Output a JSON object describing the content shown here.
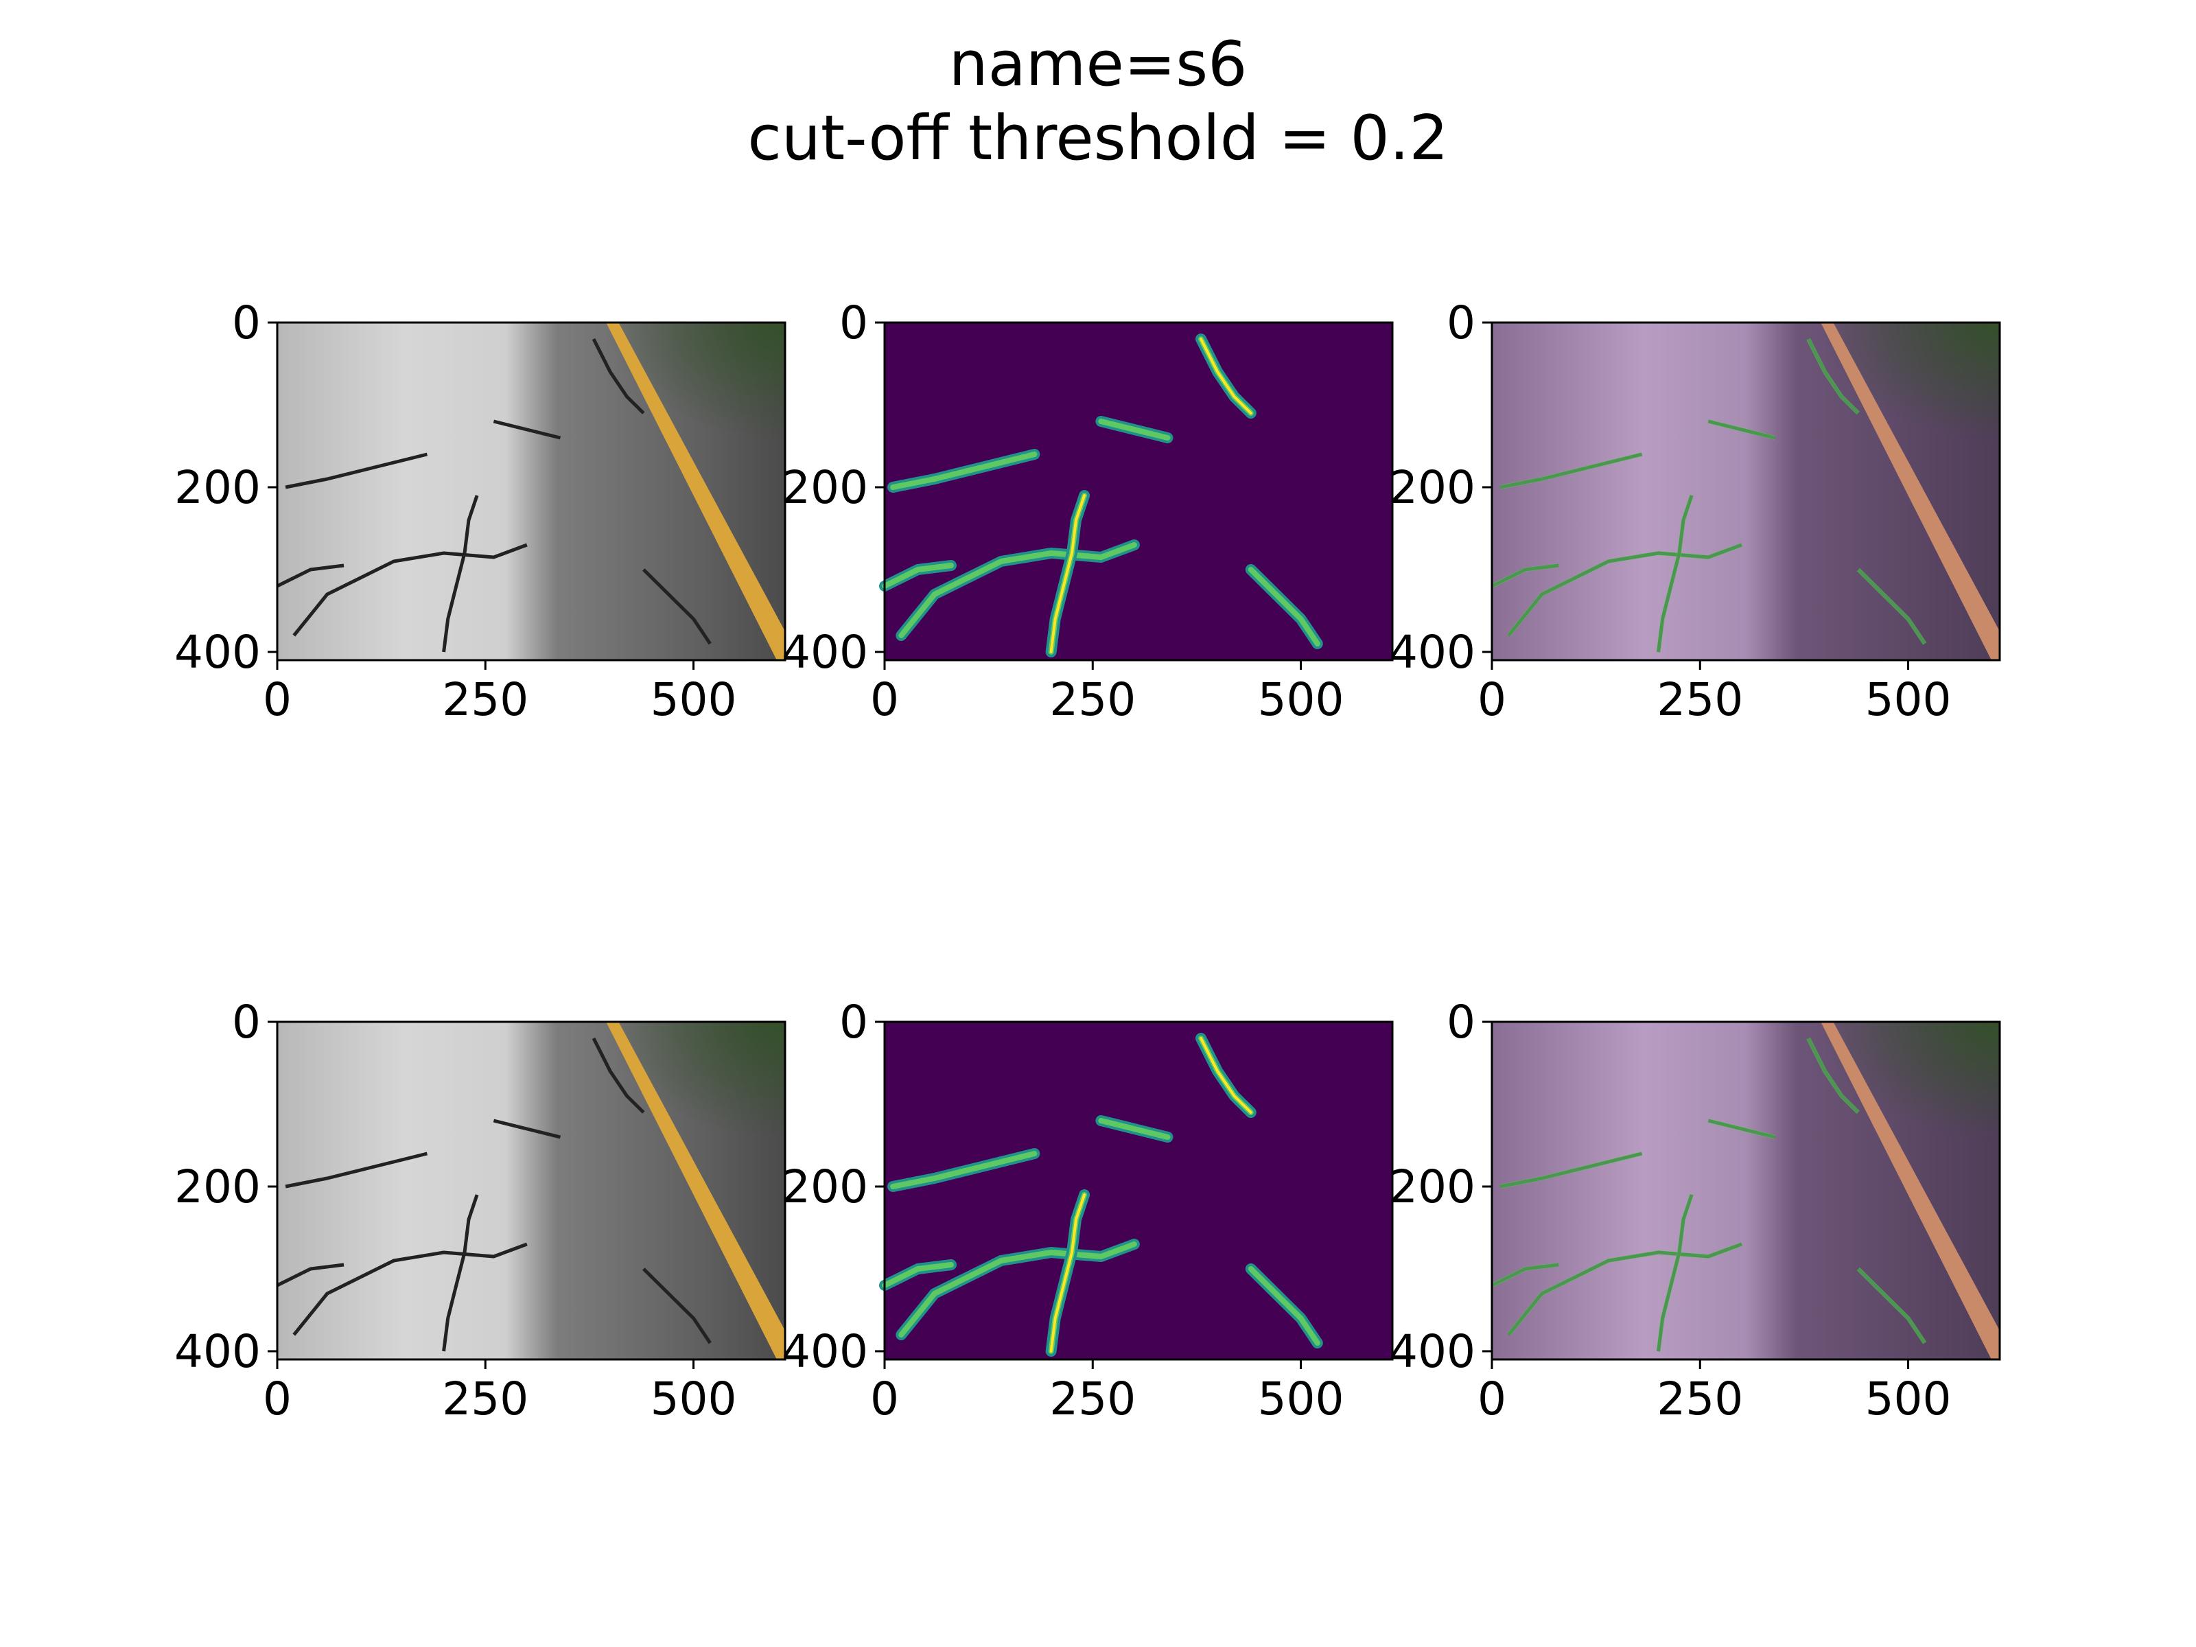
{
  "figure": {
    "title_line1": "name=s6",
    "title_line2": "cut-off threshold = 0.2"
  },
  "chart_data": [
    {
      "type": "image",
      "panel": "original",
      "row": 1,
      "col": 1,
      "x_ticks": [
        "0",
        "250",
        "500"
      ],
      "y_ticks": [
        "0",
        "200",
        "400"
      ],
      "xlim": [
        0,
        610
      ],
      "ylim": [
        410,
        0
      ]
    },
    {
      "type": "heatmap",
      "panel": "crack-probability",
      "row": 1,
      "col": 2,
      "x_ticks": [
        "0",
        "250",
        "500"
      ],
      "y_ticks": [
        "0",
        "200",
        "400"
      ],
      "xlim": [
        0,
        610
      ],
      "ylim": [
        410,
        0
      ]
    },
    {
      "type": "image",
      "panel": "overlay",
      "row": 1,
      "col": 3,
      "x_ticks": [
        "0",
        "250",
        "500"
      ],
      "y_ticks": [
        "0",
        "200",
        "400"
      ],
      "xlim": [
        0,
        610
      ],
      "ylim": [
        410,
        0
      ]
    },
    {
      "type": "image",
      "panel": "original",
      "row": 2,
      "col": 1,
      "x_ticks": [
        "0",
        "250",
        "500"
      ],
      "y_ticks": [
        "0",
        "200",
        "400"
      ],
      "xlim": [
        0,
        610
      ],
      "ylim": [
        410,
        0
      ]
    },
    {
      "type": "heatmap",
      "panel": "crack-probability",
      "row": 2,
      "col": 2,
      "x_ticks": [
        "0",
        "250",
        "500"
      ],
      "y_ticks": [
        "0",
        "200",
        "400"
      ],
      "xlim": [
        0,
        610
      ],
      "ylim": [
        410,
        0
      ]
    },
    {
      "type": "image",
      "panel": "overlay",
      "row": 2,
      "col": 3,
      "x_ticks": [
        "0",
        "250",
        "500"
      ],
      "y_ticks": [
        "0",
        "200",
        "400"
      ],
      "xlim": [
        0,
        610
      ],
      "ylim": [
        410,
        0
      ]
    }
  ],
  "colors": {
    "heatmap_bg": "#440154",
    "heatmap_mid": "#21918c",
    "heatmap_high": "#5ec962",
    "heatmap_peak": "#fde725",
    "road_light": "#c9c9c9",
    "road_dark": "#5a5a5a",
    "lane_line": "#d9a43a",
    "overlay_tint": "#b98cc4"
  }
}
